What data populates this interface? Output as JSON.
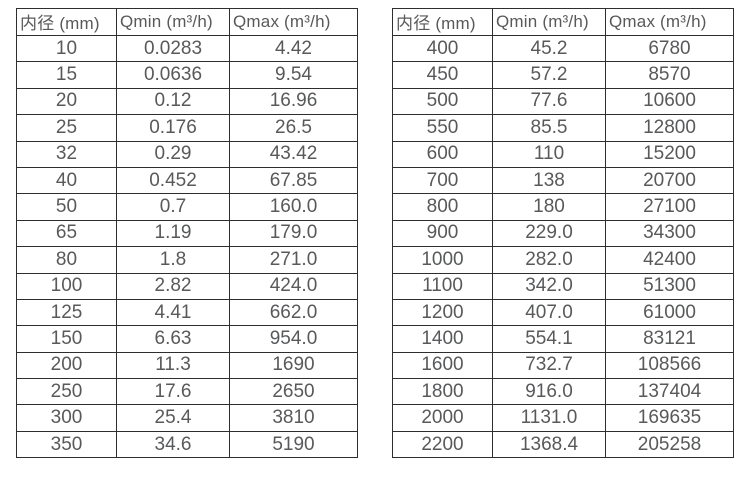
{
  "theme": {
    "background": "#ffffff",
    "border_color": "#2e2e2e",
    "text_color": "#58595b"
  },
  "tables": [
    {
      "title": "flow-range-table-small-diameters",
      "headers": [
        "内径 (mm)",
        "Qmin (m³/h)",
        "Qmax (m³/h)"
      ],
      "rows": [
        [
          "10",
          "0.0283",
          "4.42"
        ],
        [
          "15",
          "0.0636",
          "9.54"
        ],
        [
          "20",
          "0.12",
          "16.96"
        ],
        [
          "25",
          "0.176",
          "26.5"
        ],
        [
          "32",
          "0.29",
          "43.42"
        ],
        [
          "40",
          "0.452",
          "67.85"
        ],
        [
          "50",
          "0.7",
          "160.0"
        ],
        [
          "65",
          "1.19",
          "179.0"
        ],
        [
          "80",
          "1.8",
          "271.0"
        ],
        [
          "100",
          "2.82",
          "424.0"
        ],
        [
          "125",
          "4.41",
          "662.0"
        ],
        [
          "150",
          "6.63",
          "954.0"
        ],
        [
          "200",
          "11.3",
          "1690"
        ],
        [
          "250",
          "17.6",
          "2650"
        ],
        [
          "300",
          "25.4",
          "3810"
        ],
        [
          "350",
          "34.6",
          "5190"
        ]
      ]
    },
    {
      "title": "flow-range-table-large-diameters",
      "headers": [
        "内径 (mm)",
        "Qmin (m³/h)",
        "Qmax (m³/h)"
      ],
      "rows": [
        [
          "400",
          "45.2",
          "6780"
        ],
        [
          "450",
          "57.2",
          "8570"
        ],
        [
          "500",
          "77.6",
          "10600"
        ],
        [
          "550",
          "85.5",
          "12800"
        ],
        [
          "600",
          "110",
          "15200"
        ],
        [
          "700",
          "138",
          "20700"
        ],
        [
          "800",
          "180",
          "27100"
        ],
        [
          "900",
          "229.0",
          "34300"
        ],
        [
          "1000",
          "282.0",
          "42400"
        ],
        [
          "1100",
          "342.0",
          "51300"
        ],
        [
          "1200",
          "407.0",
          "61000"
        ],
        [
          "1400",
          "554.1",
          "83121"
        ],
        [
          "1600",
          "732.7",
          "108566"
        ],
        [
          "1800",
          "916.0",
          "137404"
        ],
        [
          "2000",
          "1131.0",
          "169635"
        ],
        [
          "2200",
          "1368.4",
          "205258"
        ]
      ]
    }
  ]
}
